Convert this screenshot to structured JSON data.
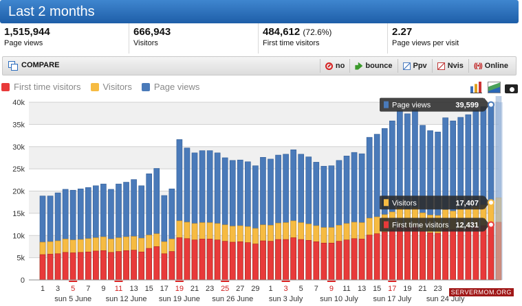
{
  "header": {
    "title": "Last 2 months"
  },
  "stats": [
    {
      "value": "1,515,944",
      "pct": "",
      "label": "Page views"
    },
    {
      "value": "666,943",
      "pct": "",
      "label": "Visitors"
    },
    {
      "value": "484,612",
      "pct": "(72.6%)",
      "label": "First time visitors"
    },
    {
      "value": "2.27",
      "pct": "",
      "label": "Page views per visit"
    }
  ],
  "toolbar": {
    "compare_label": "COMPARE",
    "buttons": [
      {
        "icon": "no-icon",
        "label": "no"
      },
      {
        "icon": "bounce-icon",
        "label": "bounce"
      },
      {
        "icon": "ppv-chart-icon",
        "label": "Ppv"
      },
      {
        "icon": "nvis-chart-icon",
        "label": "Nvis"
      },
      {
        "icon": "online-icon",
        "label": "Online"
      }
    ]
  },
  "legend": [
    {
      "label": "First time visitors",
      "color": "#e83a3a"
    },
    {
      "label": "Visitors",
      "color": "#f6bb42"
    },
    {
      "label": "Page views",
      "color": "#4a7ab9"
    }
  ],
  "chart_tools": [
    "bar-chart-icon",
    "area-chart-icon",
    "camera-icon"
  ],
  "tooltips": [
    {
      "series": "Page views",
      "value": "39,599"
    },
    {
      "series": "Visitors",
      "value": "17,407"
    },
    {
      "series": "First time visitors",
      "value": "12,431"
    }
  ],
  "credit": "SERVERMOM.ORG",
  "chart_data": {
    "type": "bar",
    "ylim": [
      0,
      40000
    ],
    "ytick_labels": [
      "0",
      "5k",
      "10k",
      "15k",
      "20k",
      "25k",
      "30k",
      "35k",
      "40k"
    ],
    "day_labels": [
      {
        "day": 0,
        "text": "1",
        "red": false
      },
      {
        "day": 2,
        "text": "3",
        "red": false
      },
      {
        "day": 4,
        "text": "5",
        "red": true
      },
      {
        "day": 6,
        "text": "7",
        "red": false
      },
      {
        "day": 8,
        "text": "9",
        "red": false
      },
      {
        "day": 10,
        "text": "11",
        "red": true
      },
      {
        "day": 12,
        "text": "13",
        "red": false
      },
      {
        "day": 14,
        "text": "15",
        "red": false
      },
      {
        "day": 16,
        "text": "17",
        "red": false
      },
      {
        "day": 18,
        "text": "19",
        "red": true
      },
      {
        "day": 20,
        "text": "21",
        "red": false
      },
      {
        "day": 22,
        "text": "23",
        "red": false
      },
      {
        "day": 24,
        "text": "25",
        "red": true
      },
      {
        "day": 26,
        "text": "27",
        "red": false
      },
      {
        "day": 28,
        "text": "29",
        "red": false
      },
      {
        "day": 30,
        "text": "1",
        "red": false
      },
      {
        "day": 32,
        "text": "3",
        "red": true
      },
      {
        "day": 34,
        "text": "5",
        "red": false
      },
      {
        "day": 36,
        "text": "7",
        "red": false
      },
      {
        "day": 38,
        "text": "9",
        "red": true
      },
      {
        "day": 40,
        "text": "11",
        "red": false
      },
      {
        "day": 42,
        "text": "13",
        "red": false
      },
      {
        "day": 44,
        "text": "15",
        "red": false
      },
      {
        "day": 46,
        "text": "17",
        "red": true
      },
      {
        "day": 48,
        "text": "19",
        "red": false
      },
      {
        "day": 50,
        "text": "21",
        "red": false
      },
      {
        "day": 52,
        "text": "23",
        "red": false
      }
    ],
    "week_labels": [
      {
        "day": 4,
        "text": "sun 5 June"
      },
      {
        "day": 11,
        "text": "sun 12 June"
      },
      {
        "day": 18,
        "text": "sun 19 June"
      },
      {
        "day": 25,
        "text": "sun 26 June"
      },
      {
        "day": 32,
        "text": "sun 3 July"
      },
      {
        "day": 39,
        "text": "sun 10 July"
      },
      {
        "day": 46,
        "text": "sun 17 July"
      },
      {
        "day": 53,
        "text": "sun 24 July"
      }
    ],
    "series": [
      {
        "name": "Page views",
        "color": "#4a7ab9",
        "values": [
          18900,
          18900,
          19600,
          20400,
          20200,
          20500,
          20800,
          21200,
          21600,
          20400,
          21600,
          22000,
          22600,
          21200,
          23900,
          25100,
          19000,
          20500,
          31600,
          29700,
          28600,
          29100,
          29100,
          28600,
          27500,
          26900,
          27000,
          26600,
          25700,
          27600,
          27200,
          28100,
          28300,
          29300,
          28300,
          27700,
          26500,
          25600,
          25700,
          26900,
          27900,
          28700,
          28400,
          32100,
          32800,
          34100,
          35800,
          38100,
          37400,
          38300,
          34800,
          33600,
          33300,
          36500,
          35800,
          36600,
          37200,
          38200,
          39000,
          39599,
          41600
        ]
      },
      {
        "name": "Visitors",
        "color": "#f6bb42",
        "values": [
          8500,
          8600,
          8800,
          9200,
          9000,
          9100,
          9300,
          9500,
          9700,
          9200,
          9500,
          9700,
          9800,
          9400,
          10100,
          10400,
          8600,
          9200,
          13300,
          13000,
          12700,
          12900,
          12900,
          12700,
          12400,
          12100,
          12200,
          12000,
          11600,
          12400,
          12300,
          12800,
          12900,
          13300,
          12900,
          12600,
          12200,
          11800,
          11800,
          12300,
          12700,
          13000,
          12900,
          13900,
          14200,
          14700,
          15300,
          16300,
          16000,
          16300,
          15100,
          14600,
          14500,
          15800,
          15500,
          15900,
          16100,
          16500,
          16900,
          17407,
          18500
        ]
      },
      {
        "name": "First time visitors",
        "color": "#e83a3a",
        "values": [
          5700,
          5800,
          5900,
          6200,
          6100,
          6200,
          6300,
          6500,
          6600,
          6200,
          6400,
          6600,
          6700,
          6300,
          7100,
          7500,
          5900,
          6400,
          9500,
          9300,
          9000,
          9200,
          9200,
          9000,
          8700,
          8500,
          8600,
          8400,
          8100,
          8800,
          8700,
          9100,
          9100,
          9500,
          9100,
          8900,
          8600,
          8300,
          8300,
          8700,
          9000,
          9300,
          9200,
          10100,
          10400,
          10800,
          11300,
          12000,
          11800,
          12000,
          11000,
          10600,
          10500,
          11500,
          11300,
          11500,
          11700,
          12000,
          12200,
          12431,
          13000
        ]
      }
    ]
  }
}
